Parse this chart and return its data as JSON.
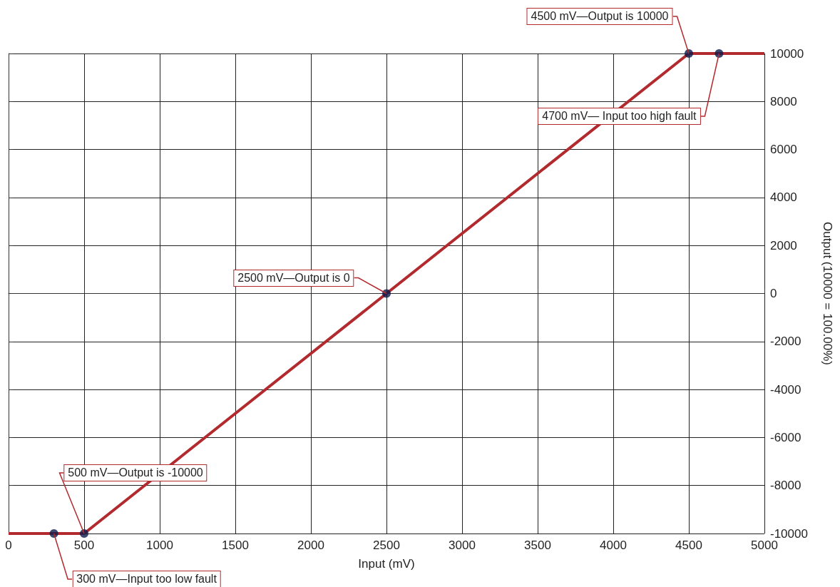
{
  "chart_data": {
    "type": "line",
    "xlabel": "Input (mV)",
    "ylabel": "Output (10000 = 100.00%)",
    "series": [
      {
        "color": "#b22a2e",
        "x": [
          0,
          500,
          4500,
          5000
        ],
        "values": [
          -10000,
          -10000,
          10000,
          10000
        ]
      },
      {
        "type": "scatter",
        "color": "#0d1a4a",
        "x": [
          300,
          500,
          2500,
          4500,
          4700
        ],
        "values": [
          -10000,
          -10000,
          0,
          10000,
          10000
        ]
      }
    ],
    "xlim": [
      0,
      5000
    ],
    "xticks": [
      0,
      500,
      1000,
      1500,
      2000,
      2500,
      3000,
      3500,
      4000,
      4500,
      5000
    ],
    "ylim": [
      -10000,
      10000
    ],
    "yticks": [
      -10000,
      -8000,
      -6000,
      -4000,
      -2000,
      0,
      2000,
      4000,
      6000,
      8000,
      10000
    ],
    "grid": true,
    "annotations": [
      {
        "text": "4500 mV—Output is 10000",
        "x": 4500,
        "y": 10000
      },
      {
        "text": "4700 mV— Input too high fault",
        "x": 4700,
        "y": 10000
      },
      {
        "text": "2500 mV—Output is 0",
        "x": 2500,
        "y": 0
      },
      {
        "text": "500 mV—Output is -10000",
        "x": 500,
        "y": -10000
      },
      {
        "text": "300 mV—Input too low fault",
        "x": 300,
        "y": -10000
      }
    ]
  }
}
